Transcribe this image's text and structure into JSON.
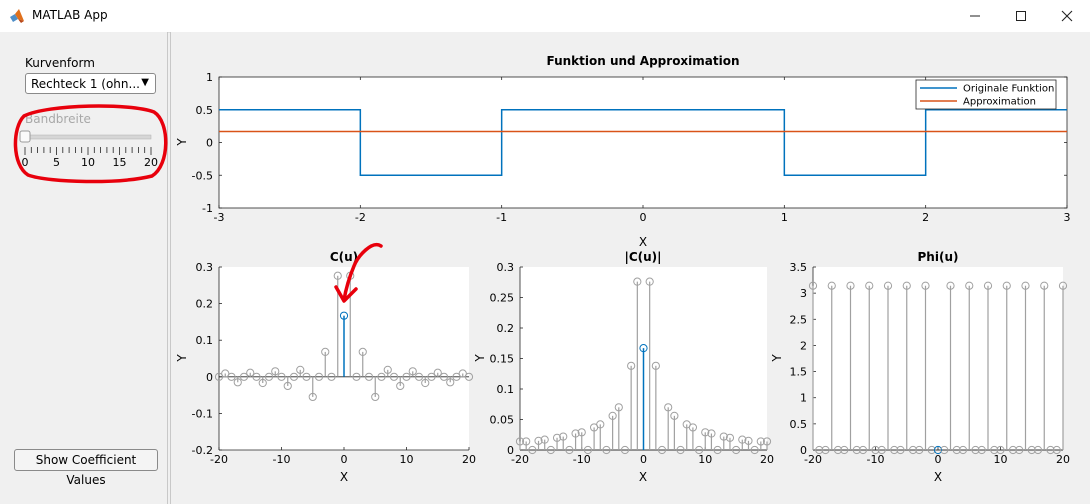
{
  "window": {
    "title": "MATLAB App"
  },
  "controls": {
    "waveform_label": "Kurvenform",
    "waveform_value": "Rechteck 1 (ohn...",
    "bandwidth_label": "Bandbreite",
    "bandwidth_value": 0,
    "bandwidth_min": 0,
    "bandwidth_max": 20,
    "bandwidth_ticks": [
      "0",
      "5",
      "10",
      "15",
      "20"
    ],
    "show_button": "Show Coefficient Values"
  },
  "colors": {
    "original": "#0072BD",
    "approx": "#D95319",
    "stem_inactive": "#a0a0a0",
    "annotation": "#e8000c"
  },
  "chart_data": [
    {
      "type": "line",
      "title": "Funktion und Approximation",
      "xlabel": "X",
      "ylabel": "Y",
      "xlim": [
        -3,
        3
      ],
      "ylim": [
        -1,
        1
      ],
      "xticks": [
        "-3",
        "-2",
        "-1",
        "0",
        "1",
        "2",
        "3"
      ],
      "yticks": [
        "1",
        "0.5",
        "0",
        "-0.5",
        "-1"
      ],
      "legend_position": "top-right",
      "series": [
        {
          "name": "Originale Funktion",
          "x": [
            -3,
            -2,
            -2,
            -1,
            -1,
            1,
            1,
            2,
            2,
            3
          ],
          "y": [
            0.5,
            0.5,
            -0.5,
            -0.5,
            0.5,
            0.5,
            -0.5,
            -0.5,
            0.5,
            0.5
          ]
        },
        {
          "name": "Approximation",
          "x": [
            -3,
            3
          ],
          "y": [
            0.167,
            0.167
          ]
        }
      ]
    },
    {
      "type": "scatter",
      "title": "C(u)",
      "xlabel": "X",
      "ylabel": "Y",
      "xlim": [
        -20,
        20
      ],
      "ylim": [
        -0.2,
        0.3
      ],
      "xticks": [
        "-20",
        "-10",
        "0",
        "10",
        "20"
      ],
      "yticks": [
        "0.3",
        "0.2",
        "0.1",
        "0",
        "-0.1",
        "-0.2"
      ],
      "x": [
        -20,
        -19,
        -18,
        -17,
        -16,
        -15,
        -14,
        -13,
        -12,
        -11,
        -10,
        -9,
        -8,
        -7,
        -6,
        -5,
        -4,
        -3,
        -2,
        -1,
        0,
        1,
        2,
        3,
        4,
        5,
        6,
        7,
        8,
        9,
        10,
        11,
        12,
        13,
        14,
        15,
        16,
        17,
        18,
        19,
        20
      ],
      "y": [
        0,
        0.009,
        0,
        -0.015,
        0,
        0.011,
        0,
        -0.017,
        0,
        0.015,
        0,
        -0.025,
        0,
        0.019,
        0,
        -0.055,
        0,
        0.068,
        0,
        0.276,
        0.167,
        0.276,
        0,
        0.068,
        0,
        -0.055,
        0,
        0.019,
        0,
        -0.025,
        0,
        0.015,
        0,
        -0.017,
        0,
        0.011,
        0,
        -0.015,
        0,
        0.009,
        0
      ],
      "highlight_index": 20
    },
    {
      "type": "scatter",
      "title": "|C(u)|",
      "xlabel": "X",
      "ylabel": "Y",
      "xlim": [
        -20,
        20
      ],
      "ylim": [
        0,
        0.3
      ],
      "xticks": [
        "-20",
        "-10",
        "0",
        "10",
        "20"
      ],
      "yticks": [
        "0.3",
        "0.25",
        "0.2",
        "0.15",
        "0.1",
        "0.05",
        "0"
      ],
      "x": [
        -20,
        -19,
        -18,
        -17,
        -16,
        -15,
        -14,
        -13,
        -12,
        -11,
        -10,
        -9,
        -8,
        -7,
        -6,
        -5,
        -4,
        -3,
        -2,
        -1,
        0,
        1,
        2,
        3,
        4,
        5,
        6,
        7,
        8,
        9,
        10,
        11,
        12,
        13,
        14,
        15,
        16,
        17,
        18,
        19,
        20
      ],
      "y": [
        0.014,
        0.014,
        0,
        0.015,
        0.017,
        0,
        0.02,
        0.022,
        0,
        0.027,
        0.029,
        0,
        0.037,
        0.042,
        0,
        0.056,
        0.07,
        0,
        0.138,
        0.276,
        0.167,
        0.276,
        0.138,
        0,
        0.07,
        0.056,
        0,
        0.042,
        0.037,
        0,
        0.029,
        0.027,
        0,
        0.022,
        0.02,
        0,
        0.017,
        0.015,
        0,
        0.014,
        0.014
      ],
      "highlight_index": 20
    },
    {
      "type": "scatter",
      "title": "Phi(u)",
      "xlabel": "X",
      "ylabel": "Y",
      "xlim": [
        -20,
        20
      ],
      "ylim": [
        0,
        3.5
      ],
      "xticks": [
        "-20",
        "-10",
        "0",
        "10",
        "20"
      ],
      "yticks": [
        "3.5",
        "3",
        "2.5",
        "2",
        "1.5",
        "1",
        "0.5",
        "0"
      ],
      "x": [
        -20,
        -19,
        -18,
        -17,
        -16,
        -15,
        -14,
        -13,
        -12,
        -11,
        -10,
        -9,
        -8,
        -7,
        -6,
        -5,
        -4,
        -3,
        -2,
        -1,
        0,
        1,
        2,
        3,
        4,
        5,
        6,
        7,
        8,
        9,
        10,
        11,
        12,
        13,
        14,
        15,
        16,
        17,
        18,
        19,
        20
      ],
      "y": [
        3.1416,
        0,
        0,
        3.1416,
        0,
        0,
        3.1416,
        0,
        0,
        3.1416,
        0,
        0,
        3.1416,
        0,
        0,
        3.1416,
        0,
        0,
        3.1416,
        0,
        0,
        0,
        3.1416,
        0,
        0,
        3.1416,
        0,
        0,
        3.1416,
        0,
        0,
        3.1416,
        0,
        0,
        3.1416,
        0,
        0,
        3.1416,
        0,
        0,
        3.1416
      ],
      "highlight_index": 20
    }
  ]
}
